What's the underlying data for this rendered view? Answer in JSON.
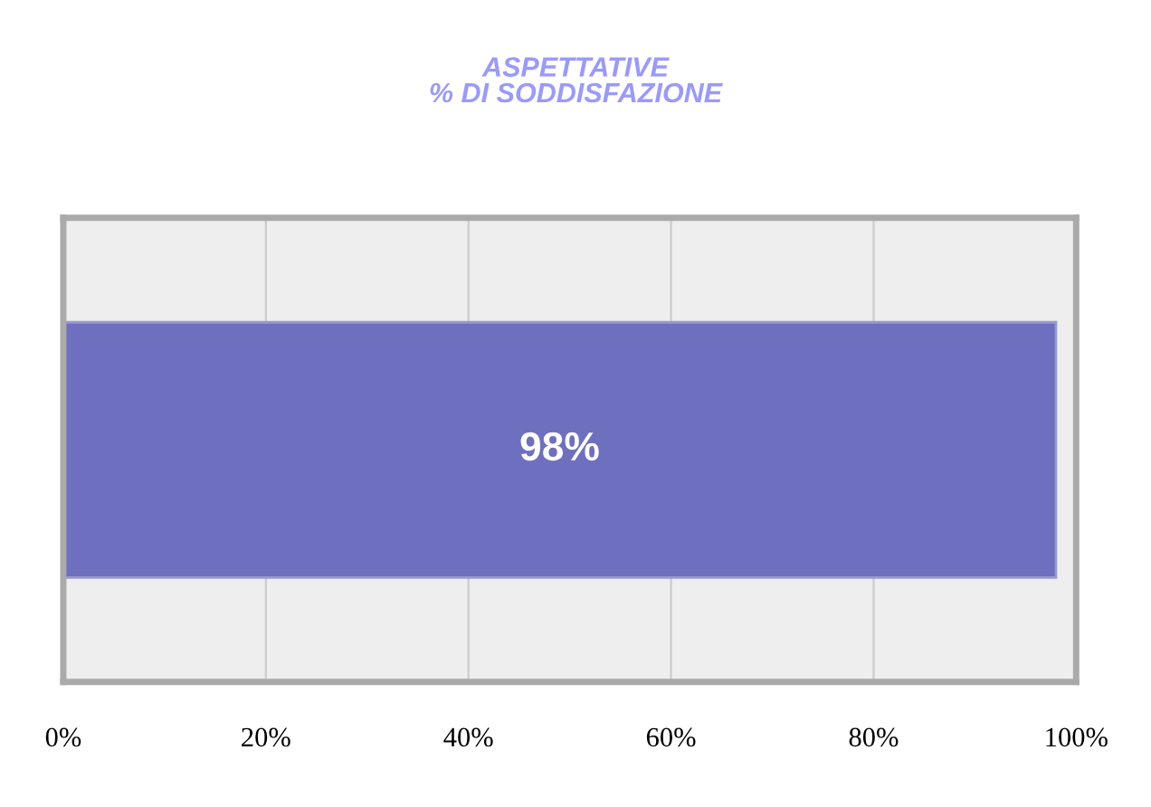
{
  "chart_data": {
    "type": "bar",
    "orientation": "horizontal",
    "title": "ASPETTATIVE\n% DI SODDISFAZIONE",
    "categories": [
      null
    ],
    "values": [
      98
    ],
    "color": "#6f6fc0",
    "value_labels": [
      "98%"
    ],
    "xlim": [
      0,
      100
    ],
    "xticks": [
      {
        "value": 0,
        "label": "0%"
      },
      {
        "value": 20,
        "label": "20%"
      },
      {
        "value": 40,
        "label": "40%"
      },
      {
        "value": 60,
        "label": "60%"
      },
      {
        "value": 80,
        "label": "80%"
      },
      {
        "value": 100,
        "label": "100%"
      }
    ],
    "grid": "x",
    "legend": false
  }
}
